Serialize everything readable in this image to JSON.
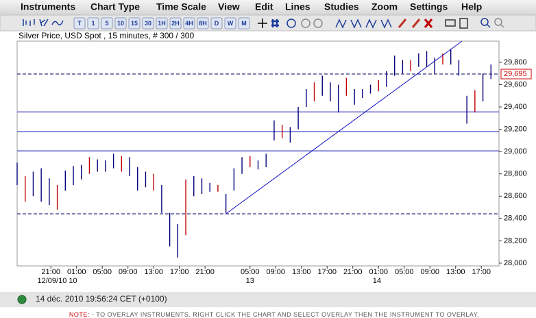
{
  "menu": [
    "Instruments",
    "Chart Type",
    "Time Scale",
    "View",
    "Edit",
    "Lines",
    "Studies",
    "Zoom",
    "Settings",
    "Help"
  ],
  "toolbar": {
    "periods": [
      "T",
      "1",
      "5",
      "10",
      "15",
      "30",
      "1H",
      "2H",
      "4H",
      "8H",
      "D",
      "W",
      "M"
    ]
  },
  "chart": {
    "type": "ohlc",
    "title": "Silver Price, USD Spot , 15 minutes, # 300 / 300",
    "color": "#00007a",
    "xlim": [
      0,
      300
    ],
    "ylim": [
      27975,
      29990
    ],
    "yticks": [
      {
        "value": 28000,
        "label": "28,000"
      },
      {
        "value": 28200,
        "label": "28,200"
      },
      {
        "value": 28400,
        "label": "28,400"
      },
      {
        "value": 28600,
        "label": "28,600"
      },
      {
        "value": 28800,
        "label": "28,800"
      },
      {
        "value": 29000,
        "label": "29,000"
      },
      {
        "value": 29200,
        "label": "29,200"
      },
      {
        "value": 29400,
        "label": "29,400"
      },
      {
        "value": 29600,
        "label": "29,600"
      },
      {
        "value": 29800,
        "label": "29,800"
      }
    ],
    "xticks": [
      {
        "value": 21,
        "label": "21:00"
      },
      {
        "value": 37,
        "label": "01:00"
      },
      {
        "value": 53,
        "label": "05:00"
      },
      {
        "value": 69,
        "label": "09:00"
      },
      {
        "value": 85,
        "label": "13:00"
      },
      {
        "value": 101,
        "label": "17:00"
      },
      {
        "value": 117,
        "label": "21:00"
      },
      {
        "value": 145,
        "label": "05:00"
      },
      {
        "value": 161,
        "label": "09:00"
      },
      {
        "value": 177,
        "label": "13:00"
      },
      {
        "value": 193,
        "label": "17:00"
      },
      {
        "value": 209,
        "label": "21:00"
      },
      {
        "value": 225,
        "label": "01:00"
      },
      {
        "value": 241,
        "label": "05:00"
      },
      {
        "value": 257,
        "label": "09:00"
      },
      {
        "value": 273,
        "label": "13:00"
      },
      {
        "value": 289,
        "label": "17:00"
      }
    ],
    "date_labels": [
      {
        "value": 25,
        "label": "12/09/10 10"
      },
      {
        "value": 145,
        "label": "13"
      },
      {
        "value": 224,
        "label": "14"
      }
    ],
    "bars": {
      "x": [
        0,
        5,
        10,
        15,
        20,
        25,
        30,
        35,
        40,
        45,
        50,
        55,
        60,
        65,
        70,
        75,
        80,
        85,
        90,
        95,
        100,
        105,
        110,
        115,
        120,
        125,
        130,
        135,
        140,
        145,
        150,
        155,
        160,
        165,
        170,
        175,
        180,
        185,
        190,
        195,
        200,
        205,
        210,
        215,
        220,
        225,
        230,
        235,
        240,
        245,
        250,
        255,
        260,
        265,
        270,
        275,
        280,
        285,
        290,
        295
      ],
      "low": [
        28700,
        28550,
        28600,
        28550,
        28520,
        28480,
        28650,
        28700,
        28750,
        28800,
        28820,
        28820,
        28850,
        28820,
        28780,
        28650,
        28680,
        28650,
        28450,
        28150,
        28050,
        28250,
        28600,
        28620,
        28640,
        28640,
        28450,
        28650,
        28800,
        28860,
        28840,
        28860,
        29100,
        29120,
        29080,
        29200,
        29400,
        29450,
        29500,
        29450,
        29350,
        29500,
        29420,
        29480,
        29520,
        29540,
        29580,
        29680,
        29700,
        29720,
        29760,
        29760,
        29700,
        29780,
        29780,
        29680,
        29250,
        29350,
        29450,
        29650
      ],
      "high": [
        28900,
        28780,
        28820,
        28850,
        28760,
        28700,
        28830,
        28870,
        28880,
        28950,
        28930,
        28920,
        28980,
        28960,
        28950,
        28860,
        28820,
        28800,
        28700,
        28450,
        28350,
        28750,
        28780,
        28760,
        28720,
        28700,
        28620,
        28850,
        28950,
        28960,
        28920,
        28980,
        29280,
        29240,
        29220,
        29400,
        29560,
        29620,
        29680,
        29620,
        29600,
        29660,
        29560,
        29560,
        29600,
        29640,
        29720,
        29860,
        29820,
        29820,
        29880,
        29900,
        29840,
        29880,
        29920,
        29820,
        29500,
        29550,
        29700,
        29780
      ]
    },
    "hlines": [
      {
        "value": 29695,
        "style": "dashed",
        "label": "29,695"
      },
      {
        "value": 29356,
        "style": "solid"
      },
      {
        "value": 29178,
        "style": "solid"
      },
      {
        "value": 29006,
        "style": "solid"
      },
      {
        "value": 28442,
        "style": "dashed"
      }
    ],
    "trendline": {
      "x": [
        130,
        277
      ],
      "y": [
        28442,
        29990
      ]
    }
  },
  "status": "14 déc. 2010 19:56:24 CET (+0100)",
  "note": {
    "label": "NOTE:",
    "text": " - TO OVERLAY INSTRUMENTS. RIGHT CLICK THE CHART AND SELECT OVERLAY THEN THE INSTRUMENT TO OVERLAY."
  }
}
